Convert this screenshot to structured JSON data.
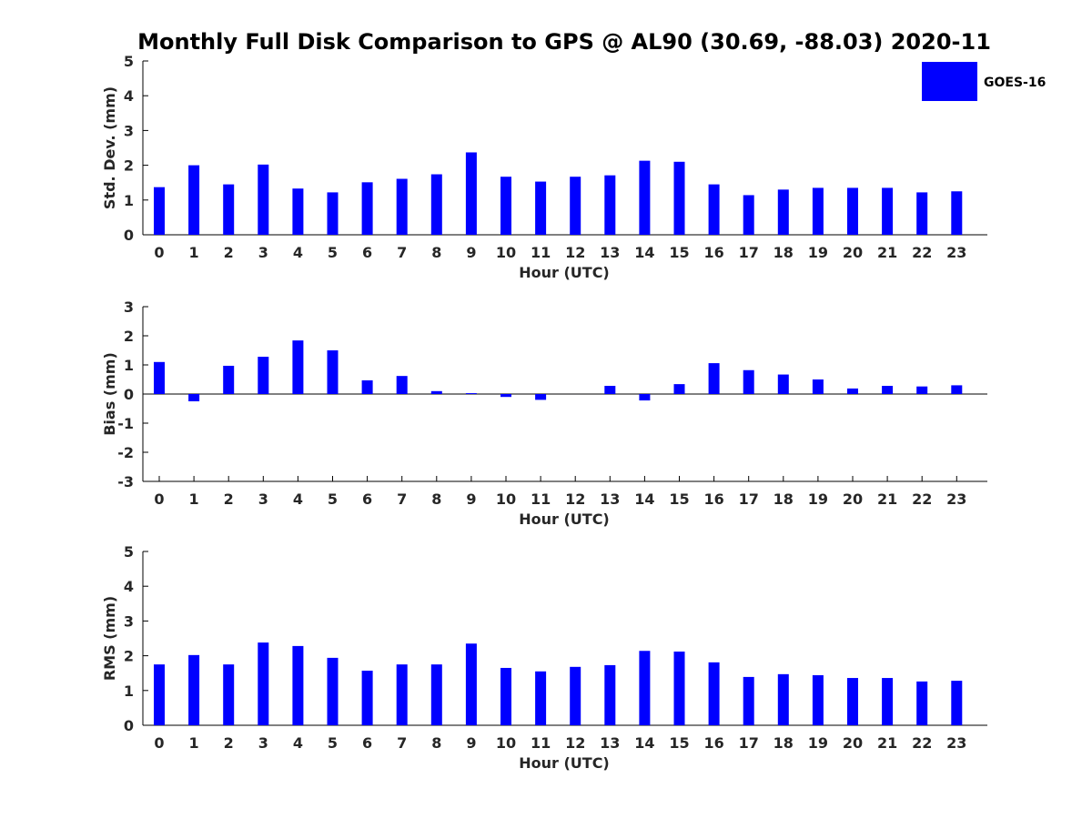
{
  "figure": {
    "title": "Monthly Full Disk Comparison to GPS @ AL90 (30.69, -88.03) 2020-11",
    "legend": {
      "label": "GOES-16",
      "color": "#0000ff",
      "placement": "top-right"
    },
    "bar_color": "#0000ff"
  },
  "chart_data": [
    {
      "type": "bar",
      "title": "Monthly Full Disk Comparison to GPS @ AL90 (30.69, -88.03) 2020-11",
      "xlabel": "Hour (UTC)",
      "ylabel": "Std. Dev. (mm)",
      "categories": [
        "0",
        "1",
        "2",
        "3",
        "4",
        "5",
        "6",
        "7",
        "8",
        "9",
        "10",
        "11",
        "12",
        "13",
        "14",
        "15",
        "16",
        "17",
        "18",
        "19",
        "20",
        "21",
        "22",
        "23"
      ],
      "ylim": [
        0,
        5
      ],
      "yticks": [
        "0",
        "1",
        "2",
        "3",
        "4",
        "5"
      ],
      "series": [
        {
          "name": "GOES-16",
          "values": [
            1.37,
            2.0,
            1.45,
            2.02,
            1.33,
            1.22,
            1.51,
            1.61,
            1.74,
            2.37,
            1.67,
            1.53,
            1.67,
            1.71,
            2.13,
            2.1,
            1.45,
            1.14,
            1.3,
            1.35,
            1.35,
            1.35,
            1.22,
            1.25
          ]
        }
      ]
    },
    {
      "type": "bar",
      "xlabel": "Hour (UTC)",
      "ylabel": "Bias (mm)",
      "categories": [
        "0",
        "1",
        "2",
        "3",
        "4",
        "5",
        "6",
        "7",
        "8",
        "9",
        "10",
        "11",
        "12",
        "13",
        "14",
        "15",
        "16",
        "17",
        "18",
        "19",
        "20",
        "21",
        "22",
        "23"
      ],
      "ylim": [
        -3,
        3
      ],
      "yticks": [
        "-3",
        "-2",
        "-1",
        "0",
        "1",
        "2",
        "3"
      ],
      "series": [
        {
          "name": "GOES-16",
          "values": [
            1.1,
            -0.25,
            0.97,
            1.28,
            1.84,
            1.5,
            0.47,
            0.62,
            0.1,
            0.03,
            -0.1,
            -0.2,
            0.0,
            0.28,
            -0.22,
            0.34,
            1.06,
            0.82,
            0.67,
            0.5,
            0.19,
            0.28,
            0.26,
            0.3
          ]
        }
      ]
    },
    {
      "type": "bar",
      "xlabel": "Hour (UTC)",
      "ylabel": "RMS (mm)",
      "categories": [
        "0",
        "1",
        "2",
        "3",
        "4",
        "5",
        "6",
        "7",
        "8",
        "9",
        "10",
        "11",
        "12",
        "13",
        "14",
        "15",
        "16",
        "17",
        "18",
        "19",
        "20",
        "21",
        "22",
        "23"
      ],
      "ylim": [
        0,
        5
      ],
      "yticks": [
        "0",
        "1",
        "2",
        "3",
        "4",
        "5"
      ],
      "series": [
        {
          "name": "GOES-16",
          "values": [
            1.75,
            2.02,
            1.75,
            2.38,
            2.28,
            1.94,
            1.57,
            1.75,
            1.75,
            2.35,
            1.65,
            1.55,
            1.68,
            1.73,
            2.14,
            2.12,
            1.81,
            1.39,
            1.47,
            1.44,
            1.36,
            1.36,
            1.26,
            1.28
          ]
        }
      ]
    }
  ]
}
